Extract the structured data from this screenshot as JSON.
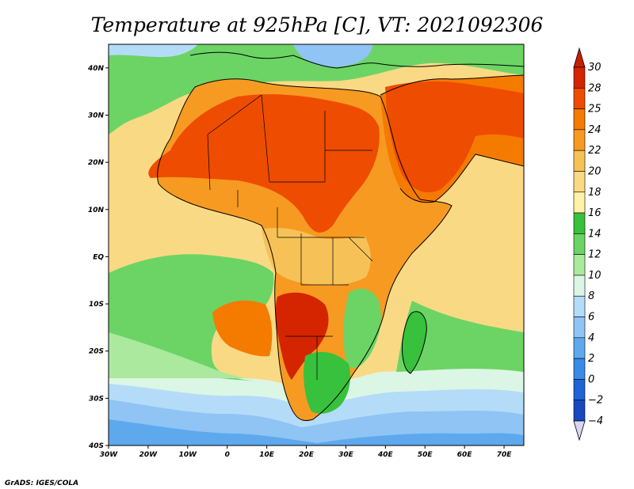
{
  "title": "Temperature at 925hPa [C], VT: 2021092306",
  "credit": "GrADS: IGES/COLA",
  "map": {
    "lon_range": [
      -30,
      75
    ],
    "lat_range": [
      -40,
      45
    ],
    "lat_ticks": [
      {
        "value": 40,
        "label": "40N"
      },
      {
        "value": 30,
        "label": "30N"
      },
      {
        "value": 20,
        "label": "20N"
      },
      {
        "value": 10,
        "label": "10N"
      },
      {
        "value": 0,
        "label": "EQ"
      },
      {
        "value": -10,
        "label": "10S"
      },
      {
        "value": -20,
        "label": "20S"
      },
      {
        "value": -30,
        "label": "30S"
      },
      {
        "value": -40,
        "label": "40S"
      }
    ],
    "lon_ticks": [
      {
        "value": -30,
        "label": "30W"
      },
      {
        "value": -20,
        "label": "20W"
      },
      {
        "value": -10,
        "label": "10W"
      },
      {
        "value": 0,
        "label": "0"
      },
      {
        "value": 10,
        "label": "10E"
      },
      {
        "value": 20,
        "label": "20E"
      },
      {
        "value": 30,
        "label": "30E"
      },
      {
        "value": 40,
        "label": "40E"
      },
      {
        "value": 50,
        "label": "50E"
      },
      {
        "value": 60,
        "label": "60E"
      },
      {
        "value": 70,
        "label": "70E"
      }
    ]
  },
  "colorbar": {
    "levels": [
      {
        "value": 30,
        "label": "30",
        "color": "#d42400"
      },
      {
        "value": 28,
        "label": "28",
        "color": "#ee4c00"
      },
      {
        "value": 25,
        "label": "25",
        "color": "#f57a00"
      },
      {
        "value": 24,
        "label": "24",
        "color": "#f79a22"
      },
      {
        "value": 22,
        "label": "22",
        "color": "#f6c257"
      },
      {
        "value": 20,
        "label": "20",
        "color": "#fad985"
      },
      {
        "value": 18,
        "label": "18",
        "color": "#fdf2a8"
      },
      {
        "value": 16,
        "label": "16",
        "color": "#38c13c"
      },
      {
        "value": 14,
        "label": "14",
        "color": "#6cd464"
      },
      {
        "value": 12,
        "label": "12",
        "color": "#abe99f"
      },
      {
        "value": 10,
        "label": "10",
        "color": "#dcf6e6"
      },
      {
        "value": 8,
        "label": "8",
        "color": "#b4dcf9"
      },
      {
        "value": 6,
        "label": "6",
        "color": "#8fc4f4"
      },
      {
        "value": 4,
        "label": "4",
        "color": "#5ea8ee"
      },
      {
        "value": 2,
        "label": "2",
        "color": "#3a8ae8"
      },
      {
        "value": 0,
        "label": "0",
        "color": "#2063d6"
      },
      {
        "value": -2,
        "label": "−2",
        "color": "#1848c0"
      },
      {
        "value": -4,
        "label": "−4",
        "color": "#102a8a"
      }
    ],
    "top_color": "#c81e00",
    "bottom_color": "#d9d6f3"
  },
  "fields": {
    "ocean_base": "#fad985",
    "land_base": "#f79a22",
    "colors": {
      "hot": "#ee4c00",
      "hottest": "#d42400",
      "warm": "#f57a00",
      "light_orange": "#f6c257",
      "pale": "#fdf2a8",
      "green": "#38c13c",
      "light_green": "#6cd464",
      "pale_green": "#abe99f",
      "mint": "#dcf6e6",
      "light_blue": "#b4dcf9",
      "blue": "#8fc4f4",
      "mid_blue": "#5ea8ee",
      "deep_blue": "#3a8ae8",
      "coast_line": "#000000"
    }
  }
}
